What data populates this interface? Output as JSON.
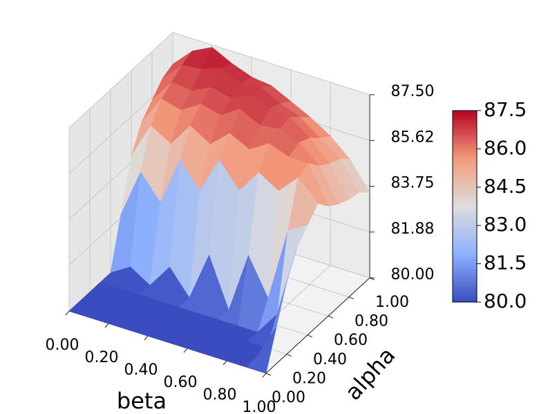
{
  "chart_data": {
    "type": "surface",
    "x_label": "beta",
    "y_label": "alpha",
    "x": [
      0,
      0.1,
      0.2,
      0.3,
      0.4,
      0.5,
      0.6,
      0.7,
      0.8,
      0.9,
      1
    ],
    "y": [
      0,
      0.1,
      0.2,
      0.3,
      0.4,
      0.5,
      0.6,
      0.7,
      0.8,
      0.9,
      1
    ],
    "z": [
      [
        80,
        80,
        80,
        80,
        80,
        80,
        80,
        80,
        80,
        80,
        80
      ],
      [
        80,
        80,
        80,
        80,
        80,
        80,
        80,
        80,
        80,
        80,
        81.5
      ],
      [
        80,
        80,
        80,
        80,
        80,
        80,
        80,
        80,
        80,
        80,
        83.0
      ],
      [
        80,
        80,
        80,
        80,
        80,
        80,
        80,
        80,
        80,
        81.0,
        84.0
      ],
      [
        80,
        80.5,
        80,
        81,
        80,
        82,
        80,
        82.5,
        81,
        84,
        84.5
      ],
      [
        82,
        84,
        83,
        85,
        84,
        85.5,
        84.5,
        85.5,
        85,
        85.8,
        85
      ],
      [
        84,
        85.5,
        85,
        86,
        85.5,
        86.2,
        85.8,
        86.3,
        86,
        86,
        84.5
      ],
      [
        85,
        86.2,
        86,
        86.5,
        86.3,
        86.8,
        86.4,
        86.5,
        86.2,
        85.5,
        84.2
      ],
      [
        85.5,
        86.5,
        86.4,
        86.8,
        86.6,
        87,
        86.7,
        86.6,
        86,
        85.2,
        84
      ],
      [
        86,
        86.8,
        86.9,
        87.2,
        86.8,
        86.9,
        86.5,
        86.2,
        85.6,
        85,
        83.9
      ],
      [
        86.2,
        87,
        87.4,
        87,
        86.7,
        86.6,
        86.2,
        85.8,
        85.3,
        84.6,
        83.5
      ]
    ],
    "xlim": [
      0,
      1
    ],
    "xticks": [
      {
        "value": 0,
        "label": "0.00"
      },
      {
        "value": 0.2,
        "label": "0.20"
      },
      {
        "value": 0.4,
        "label": "0.40"
      },
      {
        "value": 0.6,
        "label": "0.60"
      },
      {
        "value": 0.8,
        "label": "0.80"
      },
      {
        "value": 1,
        "label": "1.00"
      }
    ],
    "ylim": [
      0,
      1
    ],
    "yticks": [
      {
        "value": 0,
        "label": "0.00"
      },
      {
        "value": 0.2,
        "label": "0.20"
      },
      {
        "value": 0.4,
        "label": "0.40"
      },
      {
        "value": 0.6,
        "label": "0.60"
      },
      {
        "value": 0.8,
        "label": "0.80"
      },
      {
        "value": 1,
        "label": "1.00"
      }
    ],
    "zlim": [
      80,
      87.5
    ],
    "zticks": [
      {
        "value": 80,
        "label": "80.00"
      },
      {
        "value": 81.875,
        "label": "81.88"
      },
      {
        "value": 83.75,
        "label": "83.75"
      },
      {
        "value": 85.625,
        "label": "85.62"
      },
      {
        "value": 87.5,
        "label": "87.50"
      }
    ],
    "grid": true,
    "colormap": [
      "#3b4cc0",
      "#8db0fe",
      "#dddddd",
      "#f49a7b",
      "#b40426"
    ],
    "colorbar": {
      "lim": [
        80,
        87.5
      ],
      "ticks": [
        {
          "value": 80,
          "label": "80.0"
        },
        {
          "value": 81.5,
          "label": "81.5"
        },
        {
          "value": 83,
          "label": "83.0"
        },
        {
          "value": 84.5,
          "label": "84.5"
        },
        {
          "value": 86,
          "label": "86.0"
        },
        {
          "value": 87.5,
          "label": "87.5"
        }
      ]
    }
  }
}
